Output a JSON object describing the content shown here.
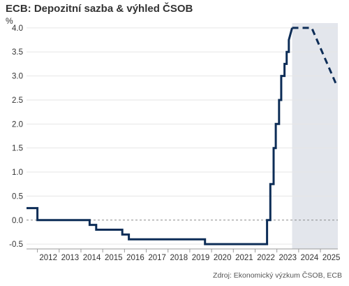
{
  "title": "ECB: Depozitní sazba & výhled ČSOB",
  "unit": "%",
  "source": "Zdroj: Ekonomický výzkum ČSOB, ECB",
  "colors": {
    "line": "#0d2d57",
    "forecast_band": "#e3e6ec",
    "grid": "#e6e6e6",
    "zero_line": "#8a8a8a"
  },
  "chart_data": {
    "type": "line",
    "title": "ECB: Depozitní sazba & výhled ČSOB",
    "ylabel": "%",
    "xlabel": "",
    "ylim": [
      -0.6,
      4.1
    ],
    "xlim": [
      2011.5,
      2025.8
    ],
    "yticks": [
      "-0.5",
      "0.0",
      "0.5",
      "1.0",
      "1.5",
      "2.0",
      "2.5",
      "3.0",
      "3.5",
      "4.0"
    ],
    "xticks": [
      "2012",
      "2013",
      "2014",
      "2015",
      "2016",
      "2017",
      "2018",
      "2019",
      "2020",
      "2021",
      "2022",
      "2023",
      "2024",
      "2025"
    ],
    "grid": true,
    "forecast_shaded_from": 2023.7,
    "series": [
      {
        "style": "solid",
        "x": [
          2011.5,
          2012.0,
          2012.0,
          2014.4,
          2014.4,
          2014.7,
          2014.7,
          2015.9,
          2015.9,
          2016.2,
          2016.2,
          2019.7,
          2019.7,
          2022.55,
          2022.55,
          2022.7,
          2022.7,
          2022.85,
          2022.85,
          2022.95,
          2022.95,
          2023.1,
          2023.1,
          2023.2,
          2023.2,
          2023.35,
          2023.35,
          2023.45,
          2023.45,
          2023.55,
          2023.55,
          2023.7
        ],
        "y": [
          0.25,
          0.25,
          0.0,
          0.0,
          -0.1,
          -0.1,
          -0.2,
          -0.2,
          -0.3,
          -0.3,
          -0.4,
          -0.4,
          -0.5,
          -0.5,
          0.0,
          0.0,
          0.75,
          0.75,
          1.5,
          1.5,
          2.0,
          2.0,
          2.5,
          2.5,
          3.0,
          3.0,
          3.25,
          3.25,
          3.5,
          3.5,
          3.75,
          4.0
        ]
      },
      {
        "style": "dashed",
        "x": [
          2023.7,
          2024.6,
          2025.75
        ],
        "y": [
          4.0,
          4.0,
          2.8
        ]
      }
    ]
  }
}
